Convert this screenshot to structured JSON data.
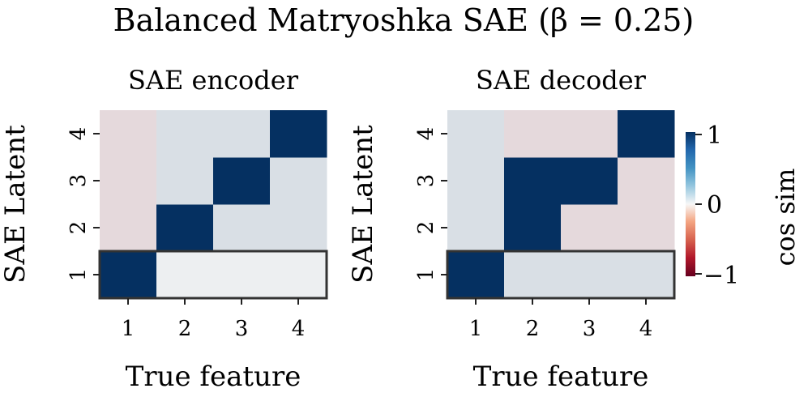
{
  "figure": {
    "title": "Balanced Matryoshka SAE (β = 0.25)"
  },
  "colorbar": {
    "label": "cos sim",
    "ticks": [
      "1",
      "0",
      "−1"
    ],
    "range": [
      -1,
      1
    ],
    "colors": {
      "neg": "#67001f",
      "mid": "#f7f7f7",
      "pos": "#053061"
    }
  },
  "chart_data": [
    {
      "type": "heatmap",
      "title": "SAE encoder",
      "xlabel": "True feature",
      "ylabel": "SAE Latent",
      "x_ticks": [
        "1",
        "2",
        "3",
        "4"
      ],
      "y_ticks": [
        "1",
        "2",
        "3",
        "4"
      ],
      "values": [
        [
          1.0,
          0.01,
          0.01,
          0.01
        ],
        [
          -0.05,
          1.0,
          0.05,
          0.05
        ],
        [
          -0.05,
          0.05,
          1.0,
          0.05
        ],
        [
          -0.05,
          0.05,
          0.05,
          1.0
        ]
      ],
      "highlight_row": "1"
    },
    {
      "type": "heatmap",
      "title": "SAE decoder",
      "xlabel": "True feature",
      "ylabel": "SAE Latent",
      "x_ticks": [
        "1",
        "2",
        "3",
        "4"
      ],
      "y_ticks": [
        "1",
        "2",
        "3",
        "4"
      ],
      "values": [
        [
          1.0,
          0.05,
          0.05,
          0.05
        ],
        [
          0.05,
          1.0,
          -0.05,
          -0.05
        ],
        [
          0.05,
          1.0,
          1.0,
          -0.05
        ],
        [
          0.05,
          -0.05,
          -0.05,
          1.0
        ]
      ],
      "highlight_row": "1"
    }
  ]
}
